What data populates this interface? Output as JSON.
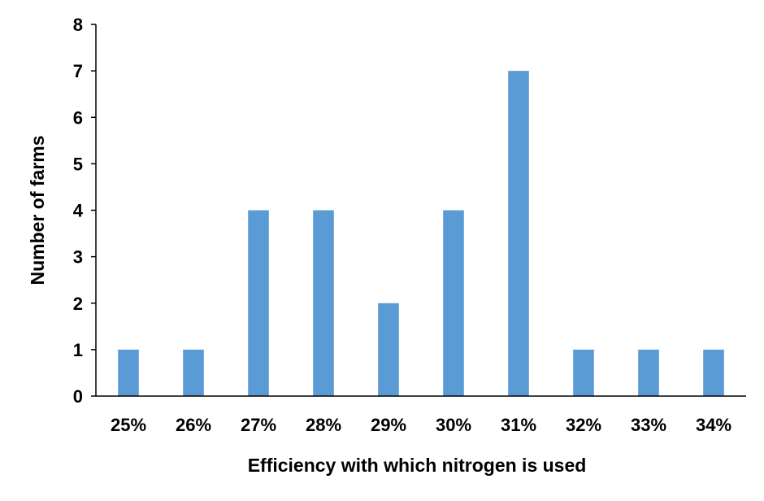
{
  "chart_data": {
    "type": "bar",
    "categories": [
      "25%",
      "26%",
      "27%",
      "28%",
      "29%",
      "30%",
      "31%",
      "32%",
      "33%",
      "34%"
    ],
    "values": [
      1,
      1,
      4,
      4,
      2,
      4,
      7,
      1,
      1,
      1
    ],
    "title": "",
    "xlabel": "Efficiency with which nitrogen is used",
    "ylabel": "Number of farms",
    "ylim": [
      0,
      8
    ],
    "yticks": [
      0,
      1,
      2,
      3,
      4,
      5,
      6,
      7,
      8
    ],
    "grid": false,
    "legend": "none",
    "colors": {
      "bar": "#5B9BD5",
      "axis": "#000000"
    }
  }
}
